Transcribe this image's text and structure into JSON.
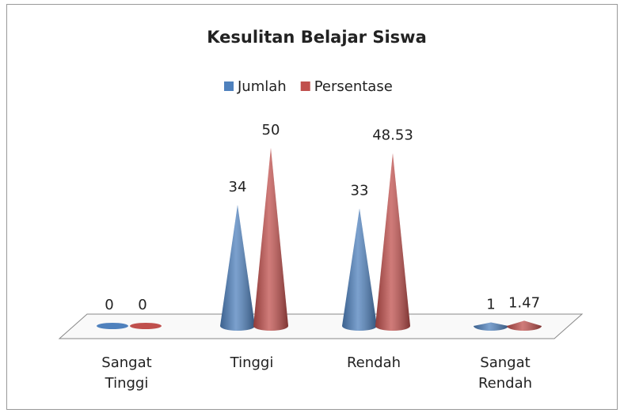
{
  "chart_data": {
    "type": "cone",
    "title": "Kesulitan Belajar Siswa",
    "categories": [
      "Sangat Tinggi",
      "Tinggi",
      "Rendah",
      "Sangat Rendah"
    ],
    "series": [
      {
        "name": "Jumlah",
        "color": "#4f81bd",
        "values": [
          0,
          34,
          33,
          1
        ]
      },
      {
        "name": "Persentase",
        "color": "#c0504d",
        "values": [
          0,
          50,
          48.53,
          1.47
        ]
      }
    ],
    "legend": "top"
  }
}
